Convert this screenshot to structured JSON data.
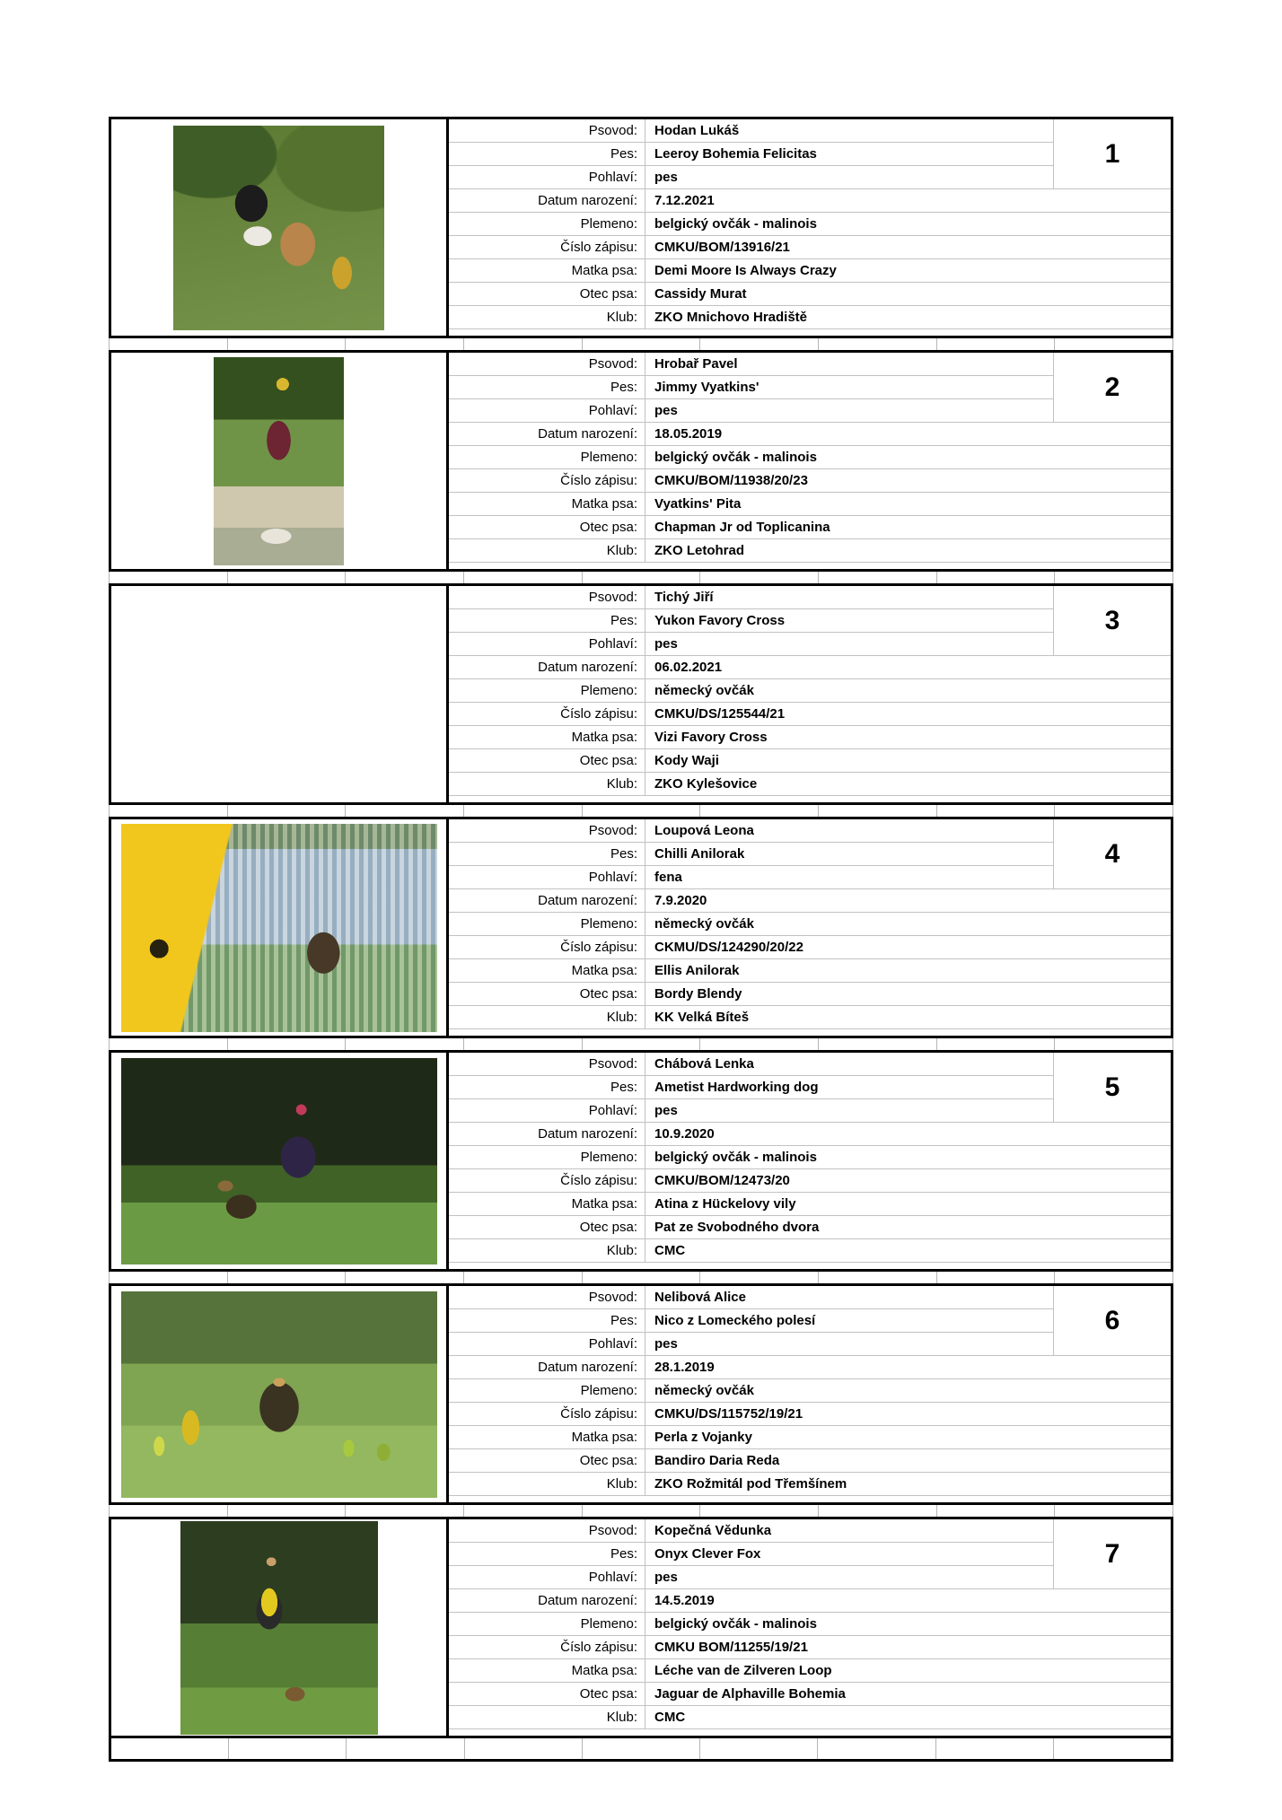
{
  "labels": {
    "psovod": "Psovod:",
    "pes": "Pes:",
    "pohlavi": "Pohlaví:",
    "datum": "Datum narození:",
    "plemeno": "Plemeno:",
    "cislo": "Číslo zápisu:",
    "matka": "Matka psa:",
    "otec": "Otec psa:",
    "klub": "Klub:"
  },
  "entries": [
    {
      "number": "1",
      "psovod": "Hodan Lukáš",
      "pes": "Leeroy Bohemia Felicitas",
      "pohlavi": "pes",
      "datum": "7.12.2021",
      "plemeno": "belgický ovčák - malinois",
      "cislo": "CMKU/BOM/13916/21",
      "matka": "Demi Moore Is Always Crazy",
      "otec": "Cassidy Murat",
      "klub": "ZKO Mnichovo Hradiště",
      "photo": "handler-with-malinois-and-trophy"
    },
    {
      "number": "2",
      "psovod": "Hrobař Pavel",
      "pes": "Jimmy Vyatkins'",
      "pohlavi": "pes",
      "datum": "18.05.2019",
      "plemeno": "belgický ovčák - malinois",
      "cislo": "CMKU/BOM/11938/20/23",
      "matka": "Vyatkins' Pita",
      "otec": "Chapman Jr od Toplicanina",
      "klub": "ZKO Letohrad",
      "photo": "handler-raising-trophy"
    },
    {
      "number": "3",
      "psovod": "Tichý Jiří",
      "pes": "Yukon Favory Cross",
      "pohlavi": "pes",
      "datum": "06.02.2021",
      "plemeno": "německý ovčák",
      "cislo": "CMKU/DS/125544/21",
      "matka": "Vizi Favory Cross",
      "otec": "Kody Waji",
      "klub": "ZKO Kylešovice",
      "photo": ""
    },
    {
      "number": "4",
      "psovod": "Loupová Leona",
      "pes": "Chilli Anilorak",
      "pohlavi": "fena",
      "datum": "7.9.2020",
      "plemeno": "německý ovčák",
      "cislo": "CKMU/DS/124290/20/22",
      "matka": "Ellis Anilorak",
      "otec": "Bordy Blendy",
      "klub": "KK Velká Bíteš",
      "photo": "dog-beside-yellow-banner"
    },
    {
      "number": "5",
      "psovod": "Chábová Lenka",
      "pes": "Ametist Hardworking dog",
      "pohlavi": "pes",
      "datum": "10.9.2020",
      "plemeno": "belgický ovčák - malinois",
      "cislo": "CMKU/BOM/12473/20",
      "matka": "Atina z Hückelovy vily",
      "otec": "Pat ze Svobodného dvora",
      "klub": "CMC",
      "photo": "handler-crouching-with-dog"
    },
    {
      "number": "6",
      "psovod": "Nelibová Alice",
      "pes": "Nico z Lomeckého polesí",
      "pohlavi": "pes",
      "datum": "28.1.2019",
      "plemeno": "německý ovčák",
      "cislo": "CMKU/DS/115752/19/21",
      "matka": "Perla z Vojanky",
      "otec": "Bandiro Daria Reda",
      "klub": "ZKO Rožmitál pod Třemšínem",
      "photo": "german-shepherd-with-trophies"
    },
    {
      "number": "7",
      "psovod": "Kopečná Vědunka",
      "pes": "Onyx Clever Fox",
      "pohlavi": "pes",
      "datum": "14.5.2019",
      "plemeno": "belgický ovčák - malinois",
      "cislo": "CMKU BOM/11255/19/21",
      "matka": "Léche van de Zilveren Loop",
      "otec": "Jaguar de Alphaville Bohemia",
      "klub": "CMC",
      "photo": "handler-in-yellow-vest-with-dog"
    }
  ]
}
